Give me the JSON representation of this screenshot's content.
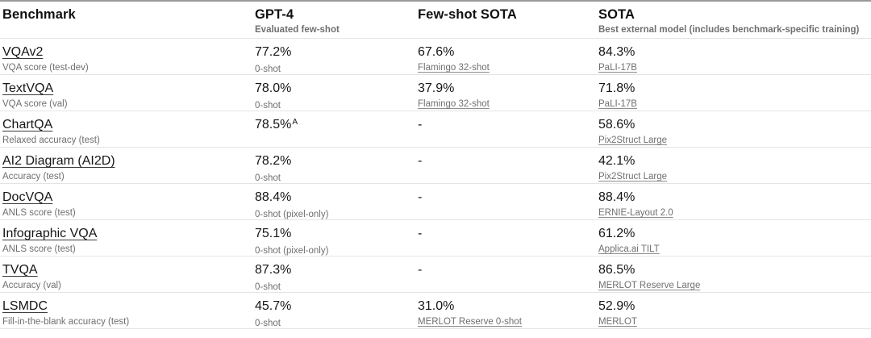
{
  "table": {
    "columns": [
      {
        "label": "Benchmark",
        "sublabel": ""
      },
      {
        "label": "GPT-4",
        "sublabel": "Evaluated few-shot"
      },
      {
        "label": "Few-shot SOTA",
        "sublabel": ""
      },
      {
        "label": "SOTA",
        "sublabel": "Best external model (includes benchmark-specific training)"
      }
    ],
    "rows": [
      {
        "benchmark": {
          "name": "VQAv2",
          "metric": "VQA score (test-dev)"
        },
        "gpt4": {
          "value": "77.2%",
          "sup": "",
          "note": "0-shot",
          "link": false
        },
        "fewshot": {
          "value": "67.6%",
          "note": "Flamingo 32-shot",
          "link": true
        },
        "sota": {
          "value": "84.3%",
          "note": "PaLI-17B",
          "link": true
        }
      },
      {
        "benchmark": {
          "name": "TextVQA",
          "metric": "VQA score (val)"
        },
        "gpt4": {
          "value": "78.0%",
          "sup": "",
          "note": "0-shot",
          "link": false
        },
        "fewshot": {
          "value": "37.9%",
          "note": "Flamingo 32-shot",
          "link": true
        },
        "sota": {
          "value": "71.8%",
          "note": "PaLI-17B",
          "link": true
        }
      },
      {
        "benchmark": {
          "name": "ChartQA",
          "metric": "Relaxed accuracy (test)"
        },
        "gpt4": {
          "value": "78.5%",
          "sup": "A",
          "note": "",
          "link": false
        },
        "fewshot": {
          "value": "-",
          "note": "",
          "link": false
        },
        "sota": {
          "value": "58.6%",
          "note": "Pix2Struct Large",
          "link": true
        }
      },
      {
        "benchmark": {
          "name": "AI2 Diagram (AI2D)",
          "metric": "Accuracy (test)"
        },
        "gpt4": {
          "value": "78.2%",
          "sup": "",
          "note": "0-shot",
          "link": false
        },
        "fewshot": {
          "value": "-",
          "note": "",
          "link": false
        },
        "sota": {
          "value": "42.1%",
          "note": "Pix2Struct Large",
          "link": true
        }
      },
      {
        "benchmark": {
          "name": "DocVQA",
          "metric": "ANLS score (test)"
        },
        "gpt4": {
          "value": "88.4%",
          "sup": "",
          "note": "0-shot (pixel-only)",
          "link": false
        },
        "fewshot": {
          "value": "-",
          "note": "",
          "link": false
        },
        "sota": {
          "value": "88.4%",
          "note": "ERNIE-Layout 2.0",
          "link": true
        }
      },
      {
        "benchmark": {
          "name": "Infographic VQA",
          "metric": "ANLS score (test)"
        },
        "gpt4": {
          "value": "75.1%",
          "sup": "",
          "note": "0-shot (pixel-only)",
          "link": false
        },
        "fewshot": {
          "value": "-",
          "note": "",
          "link": false
        },
        "sota": {
          "value": "61.2%",
          "note": "Applica.ai TILT",
          "link": true
        }
      },
      {
        "benchmark": {
          "name": "TVQA",
          "metric": "Accuracy (val)"
        },
        "gpt4": {
          "value": "87.3%",
          "sup": "",
          "note": "0-shot",
          "link": false
        },
        "fewshot": {
          "value": "-",
          "note": "",
          "link": false
        },
        "sota": {
          "value": "86.5%",
          "note": "MERLOT Reserve Large",
          "link": true
        }
      },
      {
        "benchmark": {
          "name": "LSMDC",
          "metric": "Fill-in-the-blank accuracy (test)"
        },
        "gpt4": {
          "value": "45.7%",
          "sup": "",
          "note": "0-shot",
          "link": false
        },
        "fewshot": {
          "value": "31.0%",
          "note": "MERLOT Reserve 0-shot",
          "link": true
        },
        "sota": {
          "value": "52.9%",
          "note": "MERLOT",
          "link": true
        }
      }
    ],
    "colors": {
      "text": "#161616",
      "muted": "#6f6f6f",
      "divider": "#e4e4e4",
      "top_border": "#9a9a9a",
      "background": "#ffffff"
    }
  }
}
